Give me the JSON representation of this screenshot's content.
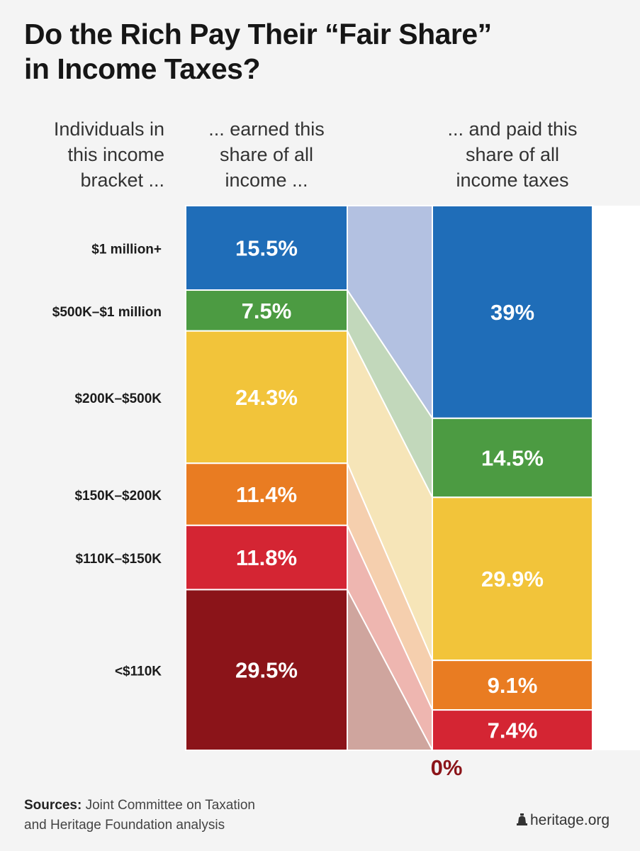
{
  "title": {
    "line1": "Do the Rich Pay Their “Fair Share”",
    "line2": "in Income Taxes?"
  },
  "headers": {
    "brackets": [
      "Individuals in",
      "this income",
      "bracket ..."
    ],
    "income": [
      "... earned this",
      "share of all",
      "income ..."
    ],
    "taxes": [
      "... and paid this",
      "share of all",
      "income taxes"
    ]
  },
  "chart_data": {
    "type": "stacked-bar",
    "categories": [
      "$1 million+",
      "$500K–$1 million",
      "$200K–$500K",
      "$150K–$200K",
      "$110K–$150K",
      "<$110K"
    ],
    "series": [
      {
        "values": [
          15.5,
          7.5,
          24.3,
          11.4,
          11.8,
          29.5
        ],
        "labels": [
          "15.5%",
          "7.5%",
          "24.3%",
          "11.4%",
          "11.8%",
          "29.5%"
        ]
      },
      {
        "values": [
          39,
          14.5,
          29.9,
          9.1,
          7.4,
          0
        ],
        "labels": [
          "39%",
          "14.5%",
          "29.9%",
          "9.1%",
          "7.4%",
          "0%"
        ]
      }
    ],
    "colors": [
      "#1f6db8",
      "#4c9b42",
      "#f2c43a",
      "#e97c22",
      "#d42533",
      "#8b1419"
    ],
    "flow_colors": [
      "#b3c1e1",
      "#c2d8bb",
      "#f6e5b8",
      "#f5cfae",
      "#eeb6b0",
      "#cfa59e"
    ],
    "zero_label_color": "#8b1419"
  },
  "source": {
    "label": "Sources:",
    "line1": " Joint Committee on Taxation",
    "line2": "and Heritage Foundation analysis"
  },
  "brand": {
    "text": "heritage.org"
  }
}
